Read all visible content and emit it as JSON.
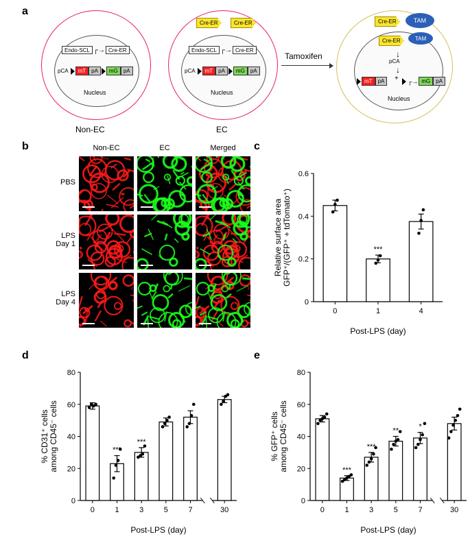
{
  "panel_labels": {
    "a": "a",
    "b": "b",
    "c": "c",
    "d": "d",
    "e": "e"
  },
  "panel_a": {
    "cell1_label": "Non-EC",
    "cell2_label": "EC",
    "nucleus_label": "Nucleus",
    "tamoxifen_arrow_label": "Tamoxifen",
    "endo_scl": "Endo-SCL",
    "cre_er": "Cre-ER",
    "pca": "pCA",
    "mt": "mT",
    "pa": "pA",
    "mg": "mG",
    "tam": "TAM",
    "colors": {
      "cre_yellow": "#f9e52e",
      "tam_blue": "#2b5fb8",
      "mt_red": "#ff1e1e",
      "mg_green": "#7ed957",
      "pa_gray": "#c8c8c8",
      "cell1_border": "#e91e63",
      "cell2_border": "#e91e63",
      "cell3_border": "#d4c05a"
    }
  },
  "panel_b": {
    "col_headers": [
      "Non-EC",
      "EC",
      "Merged"
    ],
    "row_labels": [
      "PBS",
      "LPS\nDay 1",
      "LPS\nDay 4"
    ],
    "red_color": "#ff1a1a",
    "green_color": "#1aff1a"
  },
  "panel_c": {
    "type": "bar",
    "x_title": "Post-LPS (day)",
    "y_title": "Relative surface area\nGFP⁺/(GFP⁺ + tdTomato⁺)",
    "categories": [
      "0",
      "1",
      "4"
    ],
    "means": [
      0.45,
      0.2,
      0.375
    ],
    "errors": [
      0.025,
      0.018,
      0.035
    ],
    "points": [
      [
        0.42,
        0.455,
        0.475
      ],
      [
        0.18,
        0.195,
        0.215
      ],
      [
        0.32,
        0.38,
        0.43
      ]
    ],
    "ylim": [
      0,
      0.6
    ],
    "yticks": [
      0.0,
      0.2,
      0.4,
      0.6
    ],
    "sig": {
      "1": "***"
    },
    "bar_fill": "#ffffff",
    "bar_stroke": "#000000",
    "point_color": "#000000",
    "background": "#ffffff",
    "tick_fontsize": 11,
    "title_fontsize": 12,
    "bar_width_rel": 0.55
  },
  "panel_d": {
    "type": "bar",
    "x_title": "Post-LPS (day)",
    "y_title": "% CD31⁺ cells\namong CD45⁻ cells",
    "categories": [
      "0",
      "1",
      "3",
      "5",
      "7",
      "30"
    ],
    "means": [
      59,
      23,
      30,
      49,
      52,
      63
    ],
    "errors": [
      2,
      5,
      3,
      2.5,
      4,
      2
    ],
    "points": [
      [
        58,
        60,
        59,
        60
      ],
      [
        14,
        22,
        25,
        32
      ],
      [
        27,
        28,
        29,
        34
      ],
      [
        46,
        48,
        50,
        52
      ],
      [
        46,
        48,
        53,
        60
      ],
      [
        60,
        62,
        65,
        66
      ]
    ],
    "ylim": [
      0,
      80
    ],
    "yticks": [
      0,
      20,
      40,
      60,
      80
    ],
    "sig": {
      "1": "***",
      "3": "***"
    },
    "axis_break_after_index": 4,
    "bar_fill": "#ffffff",
    "bar_stroke": "#000000",
    "point_color": "#000000",
    "background": "#ffffff",
    "tick_fontsize": 11,
    "title_fontsize": 12,
    "bar_width_rel": 0.55
  },
  "panel_e": {
    "type": "bar",
    "x_title": "Post-LPS (day)",
    "y_title": "% GFP⁺ cells\namong CD45⁻ cells",
    "categories": [
      "0",
      "1",
      "3",
      "5",
      "7",
      "30"
    ],
    "means": [
      51,
      14,
      27,
      37,
      39,
      48
    ],
    "errors": [
      2,
      1.5,
      3,
      3,
      3.5,
      4
    ],
    "points": [
      [
        48,
        50,
        51,
        52,
        54
      ],
      [
        12,
        13,
        14,
        15,
        16
      ],
      [
        22,
        24,
        26,
        29,
        33
      ],
      [
        32,
        35,
        37,
        38,
        43
      ],
      [
        33,
        35,
        38,
        41,
        48
      ],
      [
        39,
        43,
        47,
        50,
        53,
        57
      ]
    ],
    "ylim": [
      0,
      80
    ],
    "yticks": [
      0,
      20,
      40,
      60,
      80
    ],
    "sig": {
      "1": "***",
      "3": "***",
      "5": "**",
      "7": "*"
    },
    "axis_break_after_index": 4,
    "bar_fill": "#ffffff",
    "bar_stroke": "#000000",
    "point_color": "#000000",
    "background": "#ffffff",
    "tick_fontsize": 11,
    "title_fontsize": 12,
    "bar_width_rel": 0.55
  }
}
